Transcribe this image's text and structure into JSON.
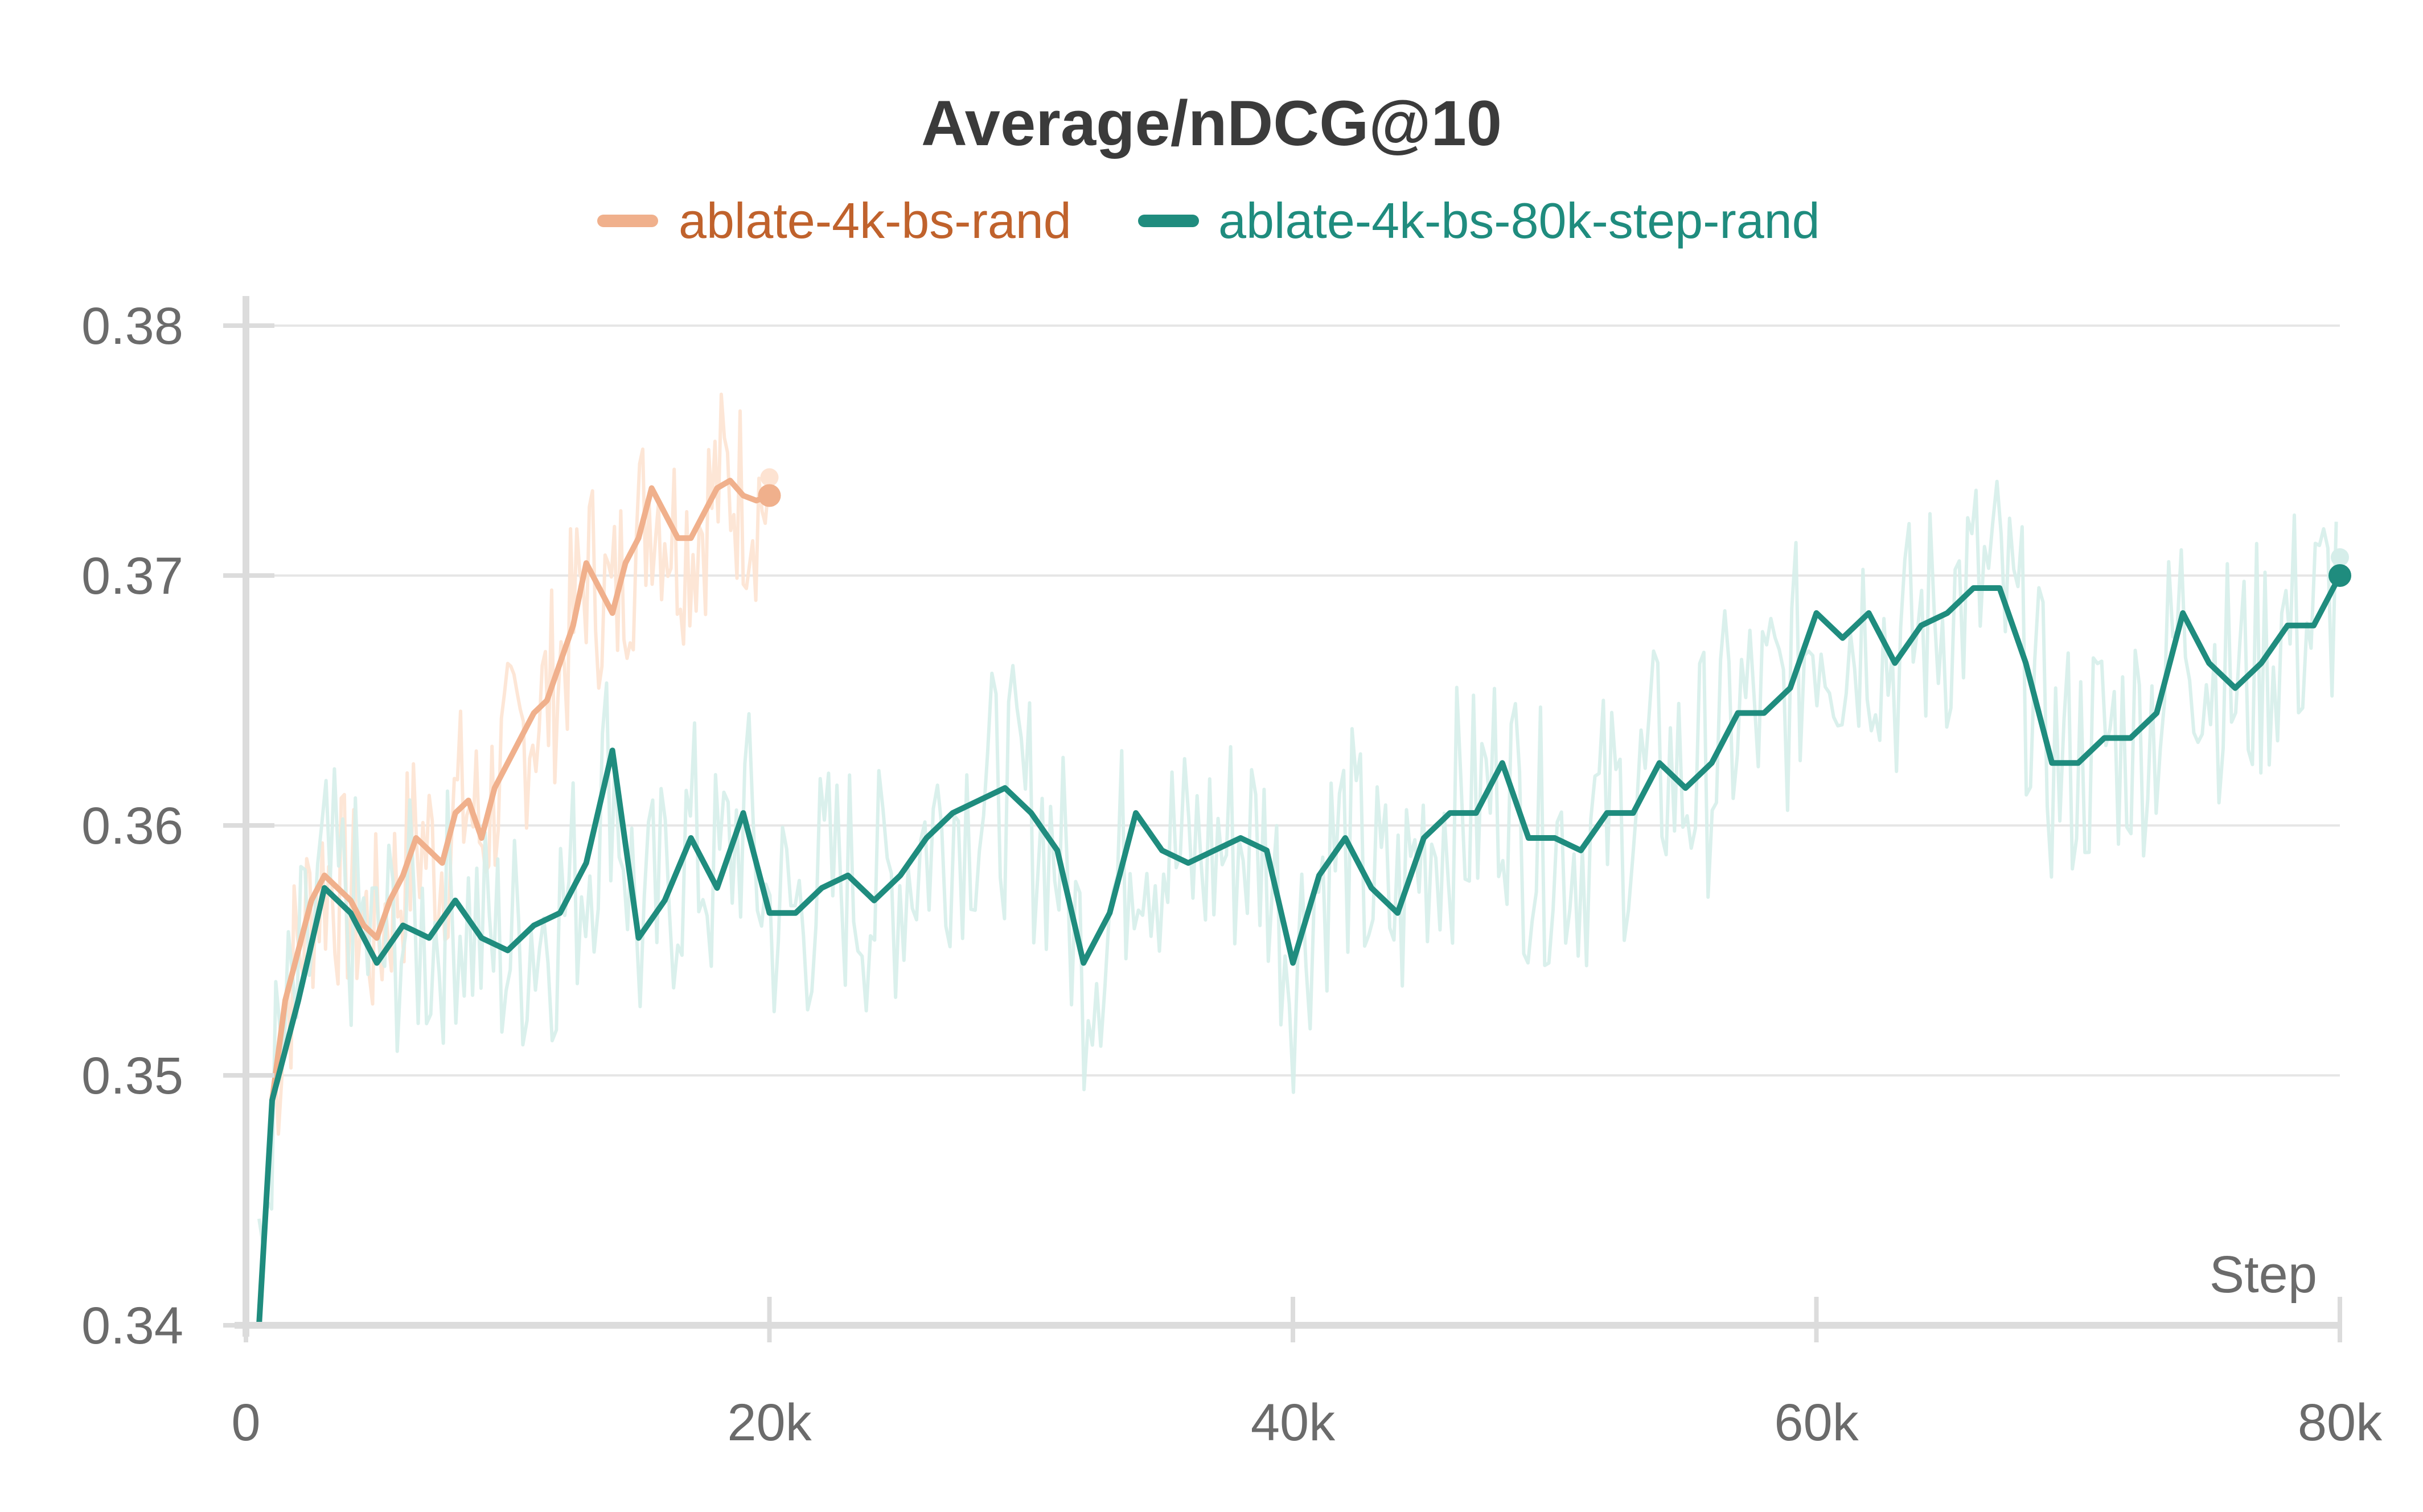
{
  "chart_data": {
    "type": "line",
    "title": "Average/nDCG@10",
    "xlabel": "Step",
    "ylabel": "",
    "xlim": [
      0,
      80000
    ],
    "ylim": [
      0.34,
      0.38
    ],
    "x_ticks": [
      "0",
      "20k",
      "40k",
      "60k",
      "80k"
    ],
    "x_tick_values": [
      0,
      20000,
      40000,
      60000,
      80000
    ],
    "y_ticks": [
      "0.34",
      "0.35",
      "0.36",
      "0.37",
      "0.38"
    ],
    "y_tick_values": [
      0.34,
      0.35,
      0.36,
      0.37,
      0.38
    ],
    "grid": true,
    "legend_position": "top-center",
    "series": [
      {
        "name": "ablate-4k-bs-rand",
        "color": "#f0b08c",
        "text_color": "#c0622c",
        "raw_color": "#fde3d2",
        "x": [
          1000,
          1500,
          2000,
          2500,
          3000,
          3500,
          4000,
          4500,
          5000,
          5500,
          6000,
          6500,
          7000,
          7500,
          8000,
          8500,
          9000,
          9500,
          10000,
          10500,
          11000,
          11500,
          12000,
          12500,
          13000,
          13500,
          14000,
          14500,
          15000,
          15500,
          16000,
          16500,
          17000,
          17500,
          18000,
          18500,
          19000,
          19500,
          20000
        ],
        "values": [
          0.349,
          0.353,
          0.355,
          0.357,
          0.358,
          0.3575,
          0.357,
          0.356,
          0.3555,
          0.357,
          0.358,
          0.3595,
          0.359,
          0.3585,
          0.3605,
          0.361,
          0.3595,
          0.3615,
          0.3625,
          0.3635,
          0.3645,
          0.365,
          0.3665,
          0.368,
          0.3705,
          0.3695,
          0.3685,
          0.3705,
          0.3715,
          0.3735,
          0.3725,
          0.3715,
          0.3715,
          0.3725,
          0.3735,
          0.3738,
          0.3732,
          0.373,
          0.3732
        ]
      },
      {
        "name": "ablate-4k-bs-80k-step-rand",
        "color": "#1f8c7e",
        "text_color": "#1f8c7e",
        "raw_color": "#d6eeea",
        "x": [
          500,
          1000,
          2000,
          3000,
          4000,
          5000,
          6000,
          7000,
          8000,
          9000,
          10000,
          11000,
          12000,
          13000,
          14000,
          15000,
          16000,
          17000,
          18000,
          19000,
          20000,
          21000,
          22000,
          23000,
          24000,
          25000,
          26000,
          27000,
          28000,
          29000,
          30000,
          31000,
          32000,
          33000,
          34000,
          35000,
          36000,
          37000,
          38000,
          39000,
          40000,
          41000,
          42000,
          43000,
          44000,
          45000,
          46000,
          47000,
          48000,
          49000,
          50000,
          51000,
          52000,
          53000,
          54000,
          55000,
          56000,
          57000,
          58000,
          59000,
          60000,
          61000,
          62000,
          63000,
          64000,
          65000,
          66000,
          67000,
          68000,
          69000,
          70000,
          71000,
          72000,
          73000,
          74000,
          75000,
          76000,
          77000,
          78000,
          79000,
          80000
        ],
        "values": [
          0.34,
          0.349,
          0.353,
          0.3575,
          0.3565,
          0.3545,
          0.356,
          0.3555,
          0.357,
          0.3555,
          0.355,
          0.356,
          0.3565,
          0.3585,
          0.363,
          0.3555,
          0.357,
          0.3595,
          0.3575,
          0.3605,
          0.3565,
          0.3565,
          0.3575,
          0.358,
          0.357,
          0.358,
          0.3595,
          0.3605,
          0.361,
          0.3615,
          0.3605,
          0.359,
          0.3545,
          0.3565,
          0.3605,
          0.359,
          0.3585,
          0.359,
          0.3595,
          0.359,
          0.3545,
          0.358,
          0.3595,
          0.3575,
          0.3565,
          0.3595,
          0.3605,
          0.3605,
          0.3625,
          0.3595,
          0.3595,
          0.359,
          0.3605,
          0.3605,
          0.3625,
          0.3615,
          0.3625,
          0.3645,
          0.3645,
          0.3655,
          0.3685,
          0.3675,
          0.3685,
          0.3665,
          0.368,
          0.3685,
          0.3695,
          0.3695,
          0.3665,
          0.3625,
          0.3625,
          0.3635,
          0.3635,
          0.3645,
          0.3685,
          0.3665,
          0.3655,
          0.3665,
          0.368,
          0.368,
          0.37
        ]
      }
    ]
  }
}
